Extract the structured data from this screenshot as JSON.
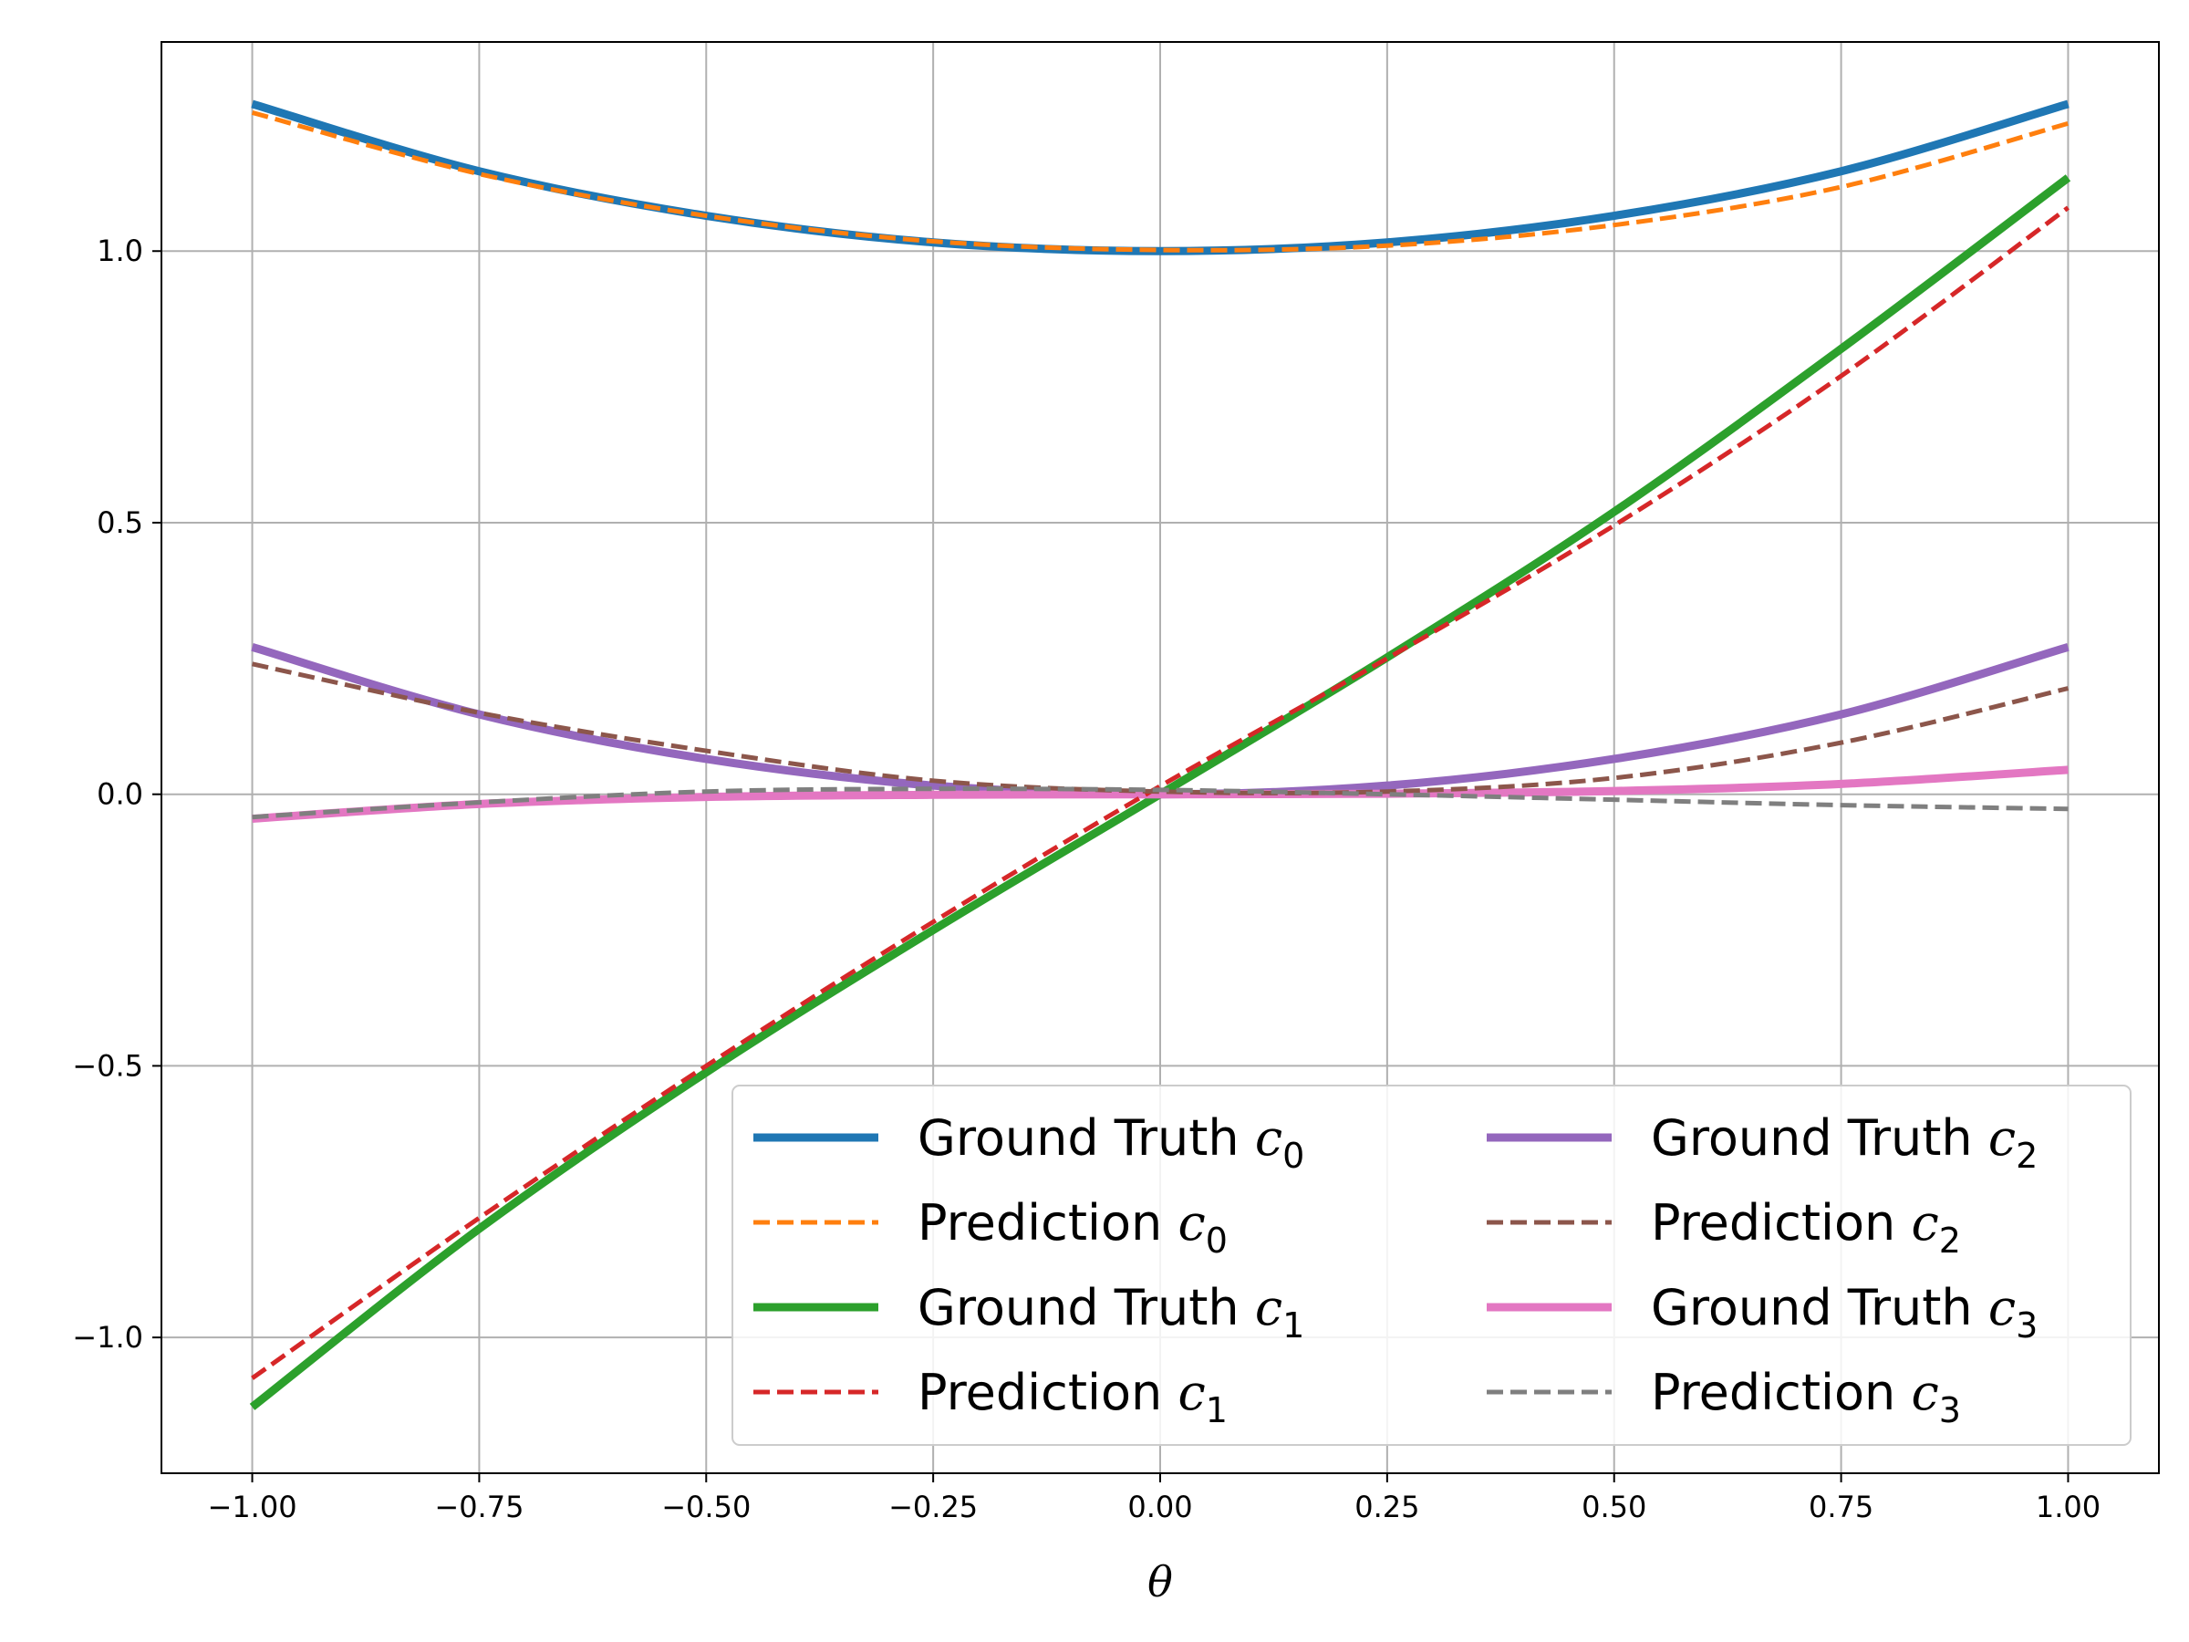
{
  "chart_data": {
    "type": "line",
    "title": "",
    "xlabel": "θ",
    "ylabel": "",
    "xlim": [
      -1.1,
      1.1
    ],
    "ylim": [
      -1.25,
      1.385
    ],
    "grid": true,
    "legend": {
      "placement": "lower-right",
      "columns": 2
    },
    "x_ticks": [
      -1.0,
      -0.75,
      -0.5,
      -0.25,
      0.0,
      0.25,
      0.5,
      0.75,
      1.0
    ],
    "x_tick_labels": [
      "−1.00",
      "−0.75",
      "−0.50",
      "−0.25",
      "0.00",
      "0.25",
      "0.50",
      "0.75",
      "1.00"
    ],
    "y_ticks": [
      -1.0,
      -0.5,
      0.0,
      0.5,
      1.0
    ],
    "y_tick_labels": [
      "−1.0",
      "−0.5",
      "0.0",
      "0.5",
      "1.0"
    ],
    "x": [
      -1.0,
      -0.75,
      -0.5,
      -0.25,
      0.0,
      0.25,
      0.5,
      0.75,
      1.0
    ],
    "series": [
      {
        "name": "Ground Truth c0",
        "label_text": "Ground Truth ",
        "symbol": "c",
        "subscript": "0",
        "style": "solid",
        "color": "#1f77b4",
        "values": [
          1.271,
          1.147,
          1.065,
          1.016,
          1.0,
          1.016,
          1.065,
          1.147,
          1.271
        ]
      },
      {
        "name": "Prediction c0",
        "label_text": "Prediction ",
        "symbol": "c",
        "subscript": "0",
        "style": "dashed",
        "color": "#ff7f0e",
        "values": [
          1.255,
          1.142,
          1.065,
          1.018,
          1.002,
          1.01,
          1.048,
          1.118,
          1.235
        ]
      },
      {
        "name": "Ground Truth c1",
        "label_text": "Ground Truth ",
        "symbol": "c",
        "subscript": "1",
        "style": "solid",
        "color": "#2ca02c",
        "values": [
          -1.128,
          -0.8,
          -0.512,
          -0.25,
          0.0,
          0.252,
          0.52,
          0.82,
          1.135
        ]
      },
      {
        "name": "Prediction c1",
        "label_text": "Prediction ",
        "symbol": "c",
        "subscript": "1",
        "style": "dashed",
        "color": "#d62728",
        "values": [
          -1.075,
          -0.78,
          -0.5,
          -0.235,
          0.015,
          0.25,
          0.495,
          0.77,
          1.08
        ]
      },
      {
        "name": "Ground Truth c2",
        "label_text": "Ground Truth ",
        "symbol": "c",
        "subscript": "2",
        "style": "solid",
        "color": "#9467bd",
        "values": [
          0.271,
          0.147,
          0.065,
          0.016,
          0.0,
          0.016,
          0.065,
          0.147,
          0.271
        ]
      },
      {
        "name": "Prediction c2",
        "label_text": "Prediction ",
        "symbol": "c",
        "subscript": "2",
        "style": "dashed",
        "color": "#8c564b",
        "values": [
          0.24,
          0.15,
          0.08,
          0.025,
          0.005,
          0.005,
          0.03,
          0.095,
          0.195
        ]
      },
      {
        "name": "Ground Truth c3",
        "label_text": "Ground Truth ",
        "symbol": "c",
        "subscript": "3",
        "style": "solid",
        "color": "#e377c2",
        "values": [
          -0.045,
          -0.018,
          -0.005,
          -0.001,
          0.0,
          0.001,
          0.006,
          0.019,
          0.045
        ]
      },
      {
        "name": "Prediction c3",
        "label_text": "Prediction ",
        "symbol": "c",
        "subscript": "3",
        "style": "dashed",
        "color": "#7f7f7f",
        "values": [
          -0.042,
          -0.015,
          0.005,
          0.01,
          0.008,
          0.0,
          -0.01,
          -0.02,
          -0.027
        ]
      }
    ]
  }
}
